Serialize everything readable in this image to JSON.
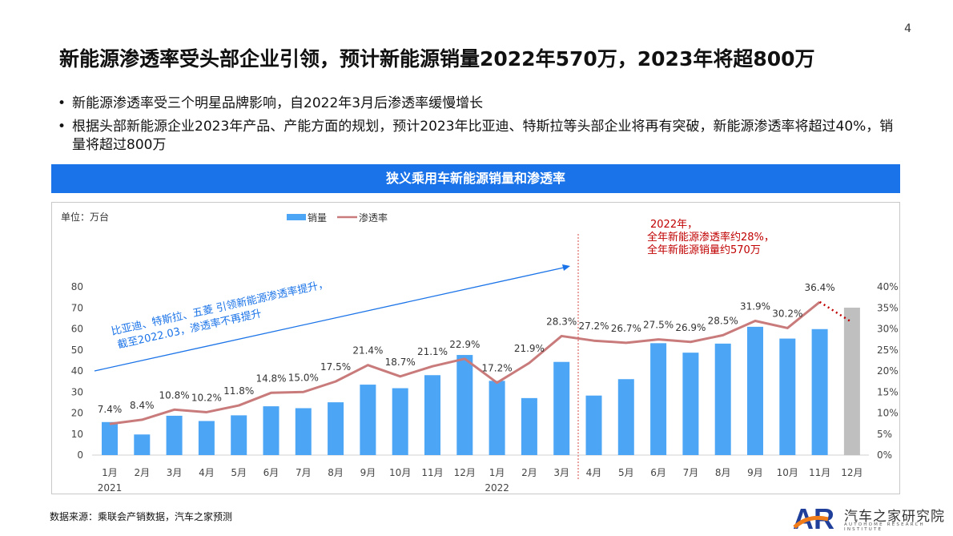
{
  "page_number": "4",
  "title": "新能源渗透率受头部企业引领，预计新能源销量2022年570万，2023年将超800万",
  "bullets": [
    "新能源渗透率受三个明星品牌影响，自2022年3月后渗透率缓慢增长",
    "根据头部新能源企业2023年产品、产能方面的规划，预计2023年比亚迪、特斯拉等头部企业将再有突破，新能源渗透率将超过40%，销量将超过800万"
  ],
  "source": "数据来源：乘联会产销数据，汽车之家预测",
  "logo": {
    "mark": "AR",
    "name_cn": "汽车之家研究院",
    "name_en": "AUTOHOME RESEARCH INSTITUTE"
  },
  "colors": {
    "banner": "#1a73e8",
    "bar": "#4da6f5",
    "bar_forecast": "#bfbfbf",
    "line": "#c97b7b",
    "forecast_line": "#c00000",
    "annotation_blue": "#1a73e8",
    "annotation_red": "#c00000"
  },
  "chart_data": {
    "type": "bar+line",
    "title": "狭义乘用车新能源销量和渗透率",
    "unit_label": "单位：万台",
    "categories": [
      "1月",
      "2月",
      "3月",
      "4月",
      "5月",
      "6月",
      "7月",
      "8月",
      "9月",
      "10月",
      "11月",
      "12月",
      "1月",
      "2月",
      "3月",
      "4月",
      "5月",
      "6月",
      "7月",
      "8月",
      "9月",
      "10月",
      "11月",
      "12月"
    ],
    "year_labels": [
      {
        "label": "2021",
        "at_index": 0
      },
      {
        "label": "2022",
        "at_index": 12
      }
    ],
    "legend": [
      "销量",
      "渗透率"
    ],
    "legend_position": "top",
    "y_left": {
      "range": [
        0,
        80
      ],
      "ticks": [
        "0",
        "10",
        "20",
        "30",
        "40",
        "50",
        "60",
        "70",
        "80"
      ]
    },
    "y_right": {
      "range": [
        0,
        40
      ],
      "ticks": [
        "0%",
        "5%",
        "10%",
        "15%",
        "20%",
        "25%",
        "30%",
        "35%",
        "40%"
      ]
    },
    "series": [
      {
        "name": "销量",
        "type": "bar",
        "values": [
          15.7,
          9.8,
          18.7,
          16.2,
          18.9,
          23.2,
          22.3,
          25.1,
          33.5,
          31.8,
          38.0,
          47.6,
          35.3,
          27.1,
          44.3,
          28.3,
          36.1,
          53.2,
          48.7,
          53.0,
          61.0,
          55.4,
          59.9,
          70.1
        ],
        "forecast_index": 23
      },
      {
        "name": "渗透率",
        "type": "line",
        "values": [
          7.4,
          8.4,
          10.8,
          10.2,
          11.8,
          14.8,
          15.0,
          17.5,
          21.4,
          18.7,
          21.1,
          22.9,
          17.2,
          21.9,
          28.3,
          27.2,
          26.7,
          27.5,
          26.9,
          28.5,
          31.9,
          30.2,
          36.4,
          31.8
        ],
        "labels": [
          "7.4%",
          "8.4%",
          "10.8%",
          "10.2%",
          "11.8%",
          "14.8%",
          "15.0%",
          "17.5%",
          "21.4%",
          "18.7%",
          "21.1%",
          "22.9%",
          "17.2%",
          "21.9%",
          "28.3%",
          "27.2%",
          "26.7%",
          "27.5%",
          "26.9%",
          "28.5%",
          "31.9%",
          "30.2%",
          "36.4%",
          ""
        ],
        "forecast_index": 23
      }
    ],
    "annotations": {
      "blue": [
        "比亚迪、特斯拉、五菱 引领新能源渗透率提升，",
        "截至2022.03，渗透率不再提升"
      ],
      "red": [
        "2022年，",
        "全年新能源渗透率约28%，",
        "全年新能源销量约570万"
      ]
    },
    "grid": false
  }
}
